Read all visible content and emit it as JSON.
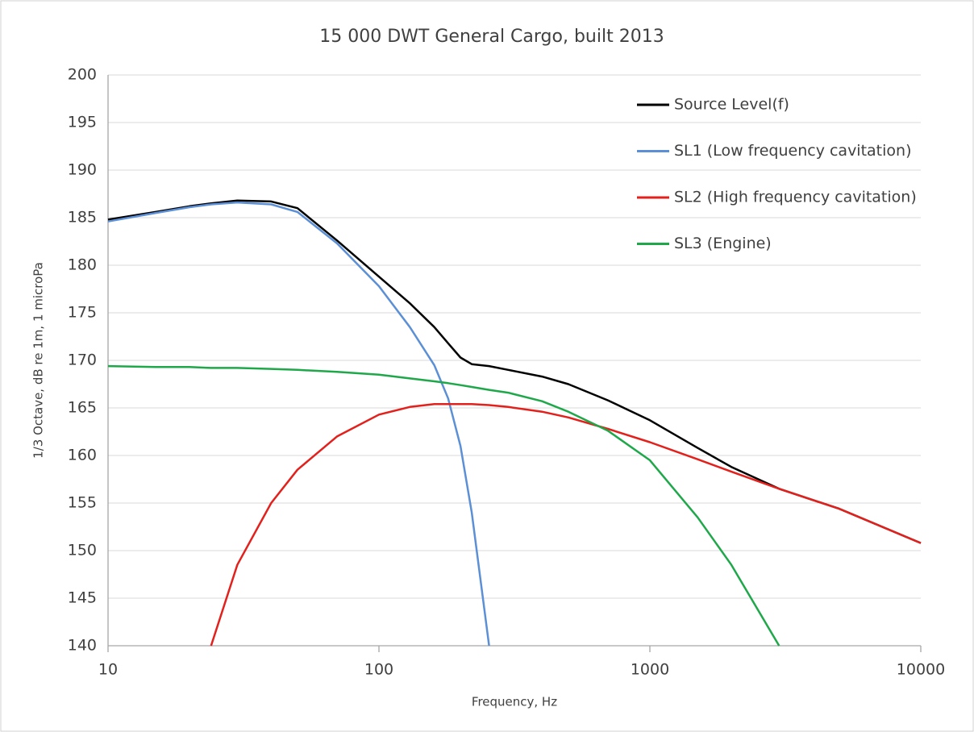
{
  "chart_data": {
    "type": "line",
    "title": "15 000 DWT General Cargo, built 2013",
    "x_label": "Frequency, Hz",
    "y_label": "1/3 Octave, dB re 1m, 1 microPa",
    "x_scale": "log",
    "grid": true,
    "legend": "upper right",
    "xlim": [
      10,
      10000
    ],
    "xticks": [
      10,
      100,
      1000,
      10000
    ],
    "ylim": [
      140,
      200
    ],
    "yticks": [
      140,
      145,
      150,
      155,
      160,
      165,
      170,
      175,
      180,
      185,
      190,
      195,
      200
    ],
    "x": [
      10,
      15,
      20,
      24,
      30,
      40,
      50,
      70,
      100,
      130,
      160,
      180,
      200,
      220,
      255,
      300,
      400,
      500,
      700,
      1000,
      1500,
      2000,
      3000,
      5000,
      10000
    ],
    "series": [
      {
        "name": "Source Level(f)",
        "color": "#000000",
        "values": [
          184.8,
          185.6,
          186.2,
          186.5,
          186.8,
          186.7,
          186.0,
          182.6,
          178.8,
          176.0,
          173.5,
          171.8,
          170.3,
          169.6,
          169.4,
          169.0,
          168.3,
          167.5,
          165.8,
          163.7,
          160.8,
          158.8,
          156.5,
          154.4,
          150.8
        ]
      },
      {
        "name": "SL1 (Low frequency cavitation)",
        "color": "#5b8fd6",
        "values": [
          184.6,
          185.5,
          186.1,
          186.4,
          186.6,
          186.4,
          185.6,
          182.3,
          177.8,
          173.5,
          169.5,
          166.0,
          161.0,
          154.0,
          140.0,
          null,
          null,
          null,
          null,
          null,
          null,
          null,
          null,
          null,
          null
        ]
      },
      {
        "name": "SL2 (High frequency cavitation)",
        "color": "#e3201b",
        "values": [
          null,
          null,
          null,
          140.0,
          148.5,
          155.0,
          158.5,
          162.0,
          164.3,
          165.1,
          165.4,
          165.4,
          165.4,
          165.4,
          165.3,
          165.1,
          164.6,
          164.0,
          162.8,
          161.4,
          159.6,
          158.3,
          156.5,
          154.4,
          150.8
        ]
      },
      {
        "name": "SL3 (Engine)",
        "color": "#1fa84a",
        "values": [
          169.4,
          169.3,
          169.3,
          169.2,
          169.2,
          169.1,
          169.0,
          168.8,
          168.5,
          168.1,
          167.8,
          167.6,
          167.4,
          167.2,
          166.9,
          166.6,
          165.7,
          164.6,
          162.6,
          159.5,
          153.5,
          148.5,
          140.0,
          null,
          null
        ]
      }
    ]
  }
}
